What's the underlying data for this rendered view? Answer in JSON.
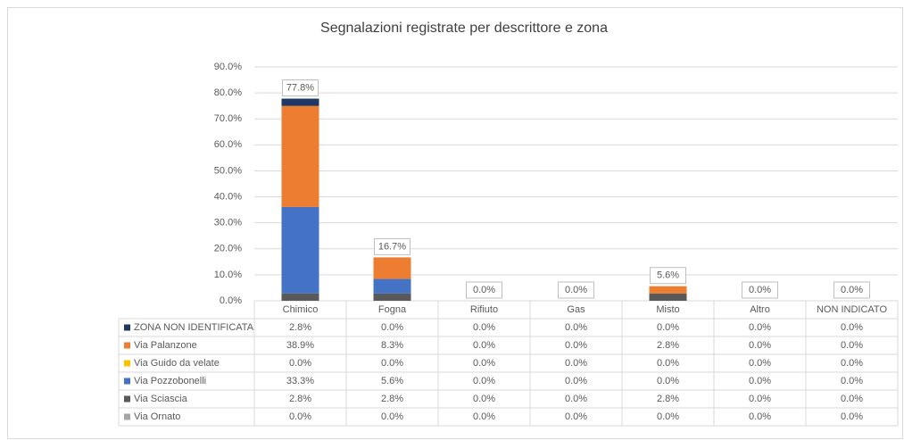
{
  "chart_data": {
    "type": "stacked_bar",
    "title": "Segnalazioni registrate per descrittore e zona",
    "categories": [
      "Chimico",
      "Fogna",
      "Rifiuto",
      "Gas",
      "Misto",
      "Altro",
      "NON INDICATO"
    ],
    "series": [
      {
        "name": "ZONA NON IDENTIFICATA",
        "color": "#203864",
        "values": [
          2.8,
          0,
          0,
          0,
          0,
          0,
          0
        ],
        "value_labels": [
          "2.8%",
          "0.0%",
          "0.0%",
          "0.0%",
          "0.0%",
          "0.0%",
          "0.0%"
        ]
      },
      {
        "name": "Via Palanzone",
        "color": "#ed7d31",
        "values": [
          38.9,
          8.3,
          0,
          0,
          2.8,
          0,
          0
        ],
        "value_labels": [
          "38.9%",
          "8.3%",
          "0.0%",
          "0.0%",
          "2.8%",
          "0.0%",
          "0.0%"
        ]
      },
      {
        "name": "Via Guido da velate",
        "color": "#ffc000",
        "values": [
          0,
          0,
          0,
          0,
          0,
          0,
          0
        ],
        "value_labels": [
          "0.0%",
          "0.0%",
          "0.0%",
          "0.0%",
          "0.0%",
          "0.0%",
          "0.0%"
        ]
      },
      {
        "name": "Via Pozzobonelli",
        "color": "#4472c4",
        "values": [
          33.3,
          5.6,
          0,
          0,
          0,
          0,
          0
        ],
        "value_labels": [
          "33.3%",
          "5.6%",
          "0.0%",
          "0.0%",
          "0.0%",
          "0.0%",
          "0.0%"
        ]
      },
      {
        "name": "Via Sciascia",
        "color": "#595959",
        "values": [
          2.8,
          2.8,
          0,
          0,
          2.8,
          0,
          0
        ],
        "value_labels": [
          "2.8%",
          "2.8%",
          "0.0%",
          "0.0%",
          "2.8%",
          "0.0%",
          "0.0%"
        ]
      },
      {
        "name": "Via Ornato",
        "color": "#a5a5a5",
        "values": [
          0,
          0,
          0,
          0,
          0,
          0,
          0
        ],
        "value_labels": [
          "0.0%",
          "0.0%",
          "0.0%",
          "0.0%",
          "0.0%",
          "0.0%",
          "0.0%"
        ]
      }
    ],
    "totals": [
      77.8,
      16.7,
      0,
      0,
      5.6,
      0,
      0
    ],
    "total_labels": [
      "77.8%",
      "16.7%",
      "0.0%",
      "0.0%",
      "5.6%",
      "0.0%",
      "0.0%"
    ],
    "ylim": [
      0,
      90
    ],
    "yticks": [
      {
        "value": 0,
        "label": "0.0%"
      },
      {
        "value": 10,
        "label": "10.0%"
      },
      {
        "value": 20,
        "label": "20.0%"
      },
      {
        "value": 30,
        "label": "30.0%"
      },
      {
        "value": 40,
        "label": "40.0%"
      },
      {
        "value": 50,
        "label": "50.0%"
      },
      {
        "value": 60,
        "label": "60.0%"
      },
      {
        "value": 70,
        "label": "70.0%"
      },
      {
        "value": 80,
        "label": "80.0%"
      },
      {
        "value": 90,
        "label": "90.0%"
      }
    ],
    "grid": true
  }
}
